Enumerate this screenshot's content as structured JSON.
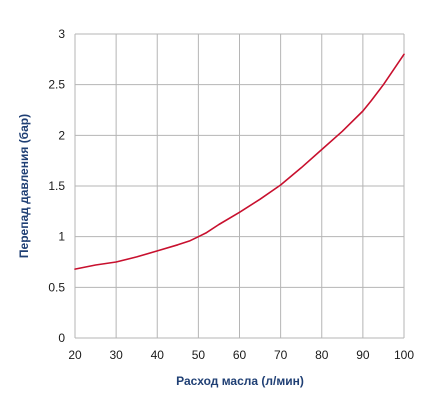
{
  "chart_data": {
    "type": "line",
    "title": "",
    "xlabel": "Расход масла (л/мин)",
    "ylabel": "Перепад давления (бар)",
    "xlim": [
      20,
      100
    ],
    "ylim": [
      0,
      3
    ],
    "x_ticks": [
      "20",
      "30",
      "40",
      "50",
      "60",
      "70",
      "80",
      "90",
      "100"
    ],
    "y_ticks": [
      "0",
      "0.5",
      "1",
      "1.5",
      "2",
      "2.5",
      "3"
    ],
    "grid": true,
    "legend": "none",
    "line_color": "#c8102e",
    "series": [
      {
        "x": [
          20,
          25,
          30,
          35,
          40,
          45,
          48,
          50,
          52,
          55,
          60,
          65,
          70,
          75,
          80,
          85,
          90,
          92,
          95,
          100
        ],
        "values": [
          0.68,
          0.72,
          0.75,
          0.8,
          0.86,
          0.92,
          0.96,
          1.0,
          1.04,
          1.12,
          1.24,
          1.37,
          1.51,
          1.68,
          1.86,
          2.04,
          2.24,
          2.34,
          2.5,
          2.8
        ]
      }
    ]
  }
}
